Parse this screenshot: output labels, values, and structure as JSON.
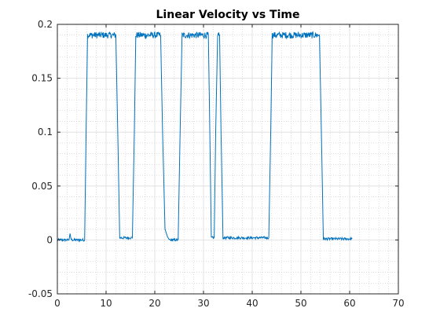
{
  "chart_data": {
    "type": "line",
    "title": "Linear Velocity vs Time",
    "xlabel": "",
    "ylabel": "",
    "xlim": [
      0,
      70
    ],
    "ylim": [
      -0.05,
      0.2
    ],
    "x_ticks": [
      0,
      10,
      20,
      30,
      40,
      50,
      60,
      70
    ],
    "y_ticks": [
      -0.05,
      0,
      0.05,
      0.1,
      0.15,
      0.2
    ],
    "x_tick_labels": [
      "0",
      "10",
      "20",
      "30",
      "40",
      "50",
      "60",
      "70"
    ],
    "y_tick_labels": [
      "-0.05",
      "0",
      "0.05",
      "0.1",
      "0.15",
      "0.2"
    ],
    "grid": "major and minor",
    "series": [
      {
        "color": "#0072BD",
        "noise_amplitude": 0.002,
        "x": [
          0,
          2.4,
          2.6,
          2.8,
          3.0,
          5.6,
          5.9,
          6.2,
          12.0,
          12.4,
          12.8,
          15.4,
          15.8,
          16.1,
          21.2,
          21.6,
          22.1,
          22.6,
          23.0,
          24.8,
          25.2,
          25.6,
          31.0,
          31.3,
          31.6,
          32.2,
          32.5,
          32.9,
          33.3,
          33.6,
          34.0,
          43.4,
          43.8,
          44.1,
          53.8,
          54.2,
          54.6,
          60.5
        ],
        "y": [
          0,
          0,
          0.006,
          0.001,
          0,
          0,
          0.1,
          0.19,
          0.19,
          0.1,
          0.002,
          0.002,
          0.1,
          0.19,
          0.19,
          0.1,
          0.01,
          0.003,
          0,
          0,
          0.1,
          0.19,
          0.19,
          0.1,
          0.002,
          0.002,
          0.1,
          0.19,
          0.19,
          0.1,
          0.002,
          0.002,
          0.1,
          0.19,
          0.19,
          0.1,
          0.001,
          0.001
        ]
      }
    ]
  }
}
